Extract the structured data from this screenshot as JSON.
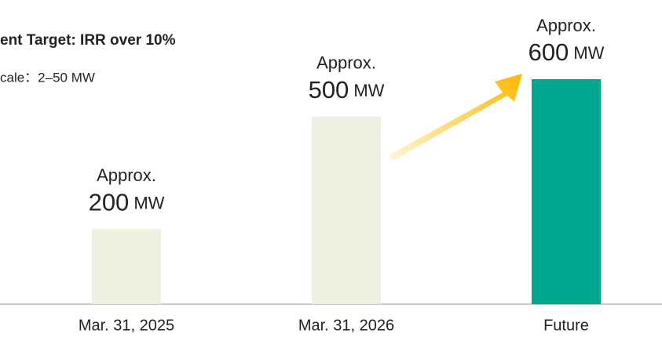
{
  "chart_data": {
    "type": "bar",
    "title": "ent Target: IRR over 10%",
    "subtitle": "cale：2–50 MW",
    "categories": [
      "Mar. 31, 2025",
      "Mar. 31, 2026",
      "Future"
    ],
    "values": [
      200,
      500,
      600
    ],
    "colors": [
      "#eef0e0",
      "#eef0e0",
      "#00a88f"
    ],
    "label_prefix": "Approx.",
    "unit": "MW"
  }
}
